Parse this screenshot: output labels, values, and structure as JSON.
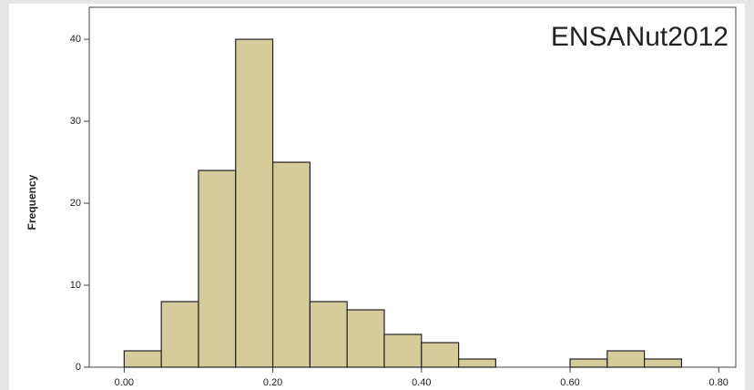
{
  "chart_data": {
    "type": "histogram",
    "annotation": "ENSANut2012",
    "y_label": "Frequency",
    "bins": [
      0,
      0.05,
      0.1,
      0.15,
      0.2,
      0.25,
      0.3,
      0.35,
      0.4,
      0.45,
      0.5,
      0.55,
      0.6,
      0.65,
      0.7,
      0.75
    ],
    "counts": [
      2,
      8,
      24,
      40,
      25,
      8,
      7,
      4,
      3,
      1,
      0,
      0,
      1,
      2,
      1
    ],
    "color": "#d4cd9b",
    "xlim": [
      -0.047,
      0.823
    ],
    "ylim": [
      0,
      43.9
    ],
    "xticks": [
      {
        "value": 0,
        "label": "0.00"
      },
      {
        "value": 0.2,
        "label": "0.20"
      },
      {
        "value": 0.4,
        "label": "0.40"
      },
      {
        "value": 0.6,
        "label": "0.60"
      },
      {
        "value": 0.8,
        "label": "0.80"
      }
    ],
    "yticks": [
      0,
      10,
      20,
      30,
      40
    ]
  }
}
